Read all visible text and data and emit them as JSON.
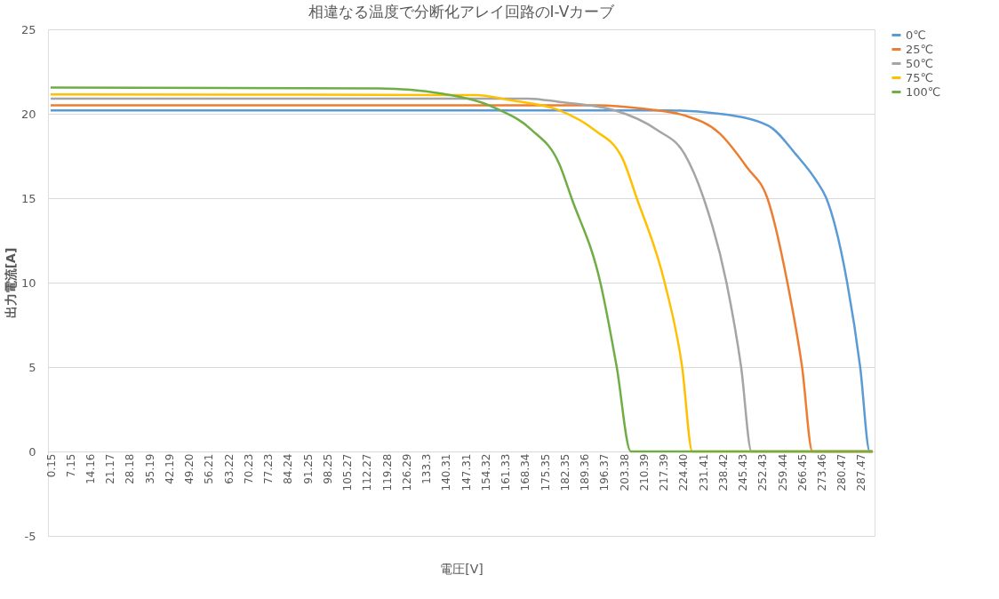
{
  "chart_data": {
    "type": "line",
    "title": "相違なる温度で分断化アレイ回路のI-Vカーブ",
    "xlabel": "電圧[V]",
    "ylabel": "出力電流[A]",
    "xlim": [
      -0.8,
      292.2
    ],
    "ylim": [
      -5,
      25
    ],
    "yticks": [
      -5,
      0,
      5,
      10,
      15,
      20,
      25
    ],
    "xticks": [
      0.15,
      7.15,
      14.16,
      21.17,
      28.18,
      35.19,
      42.19,
      {
        "value": 49.2,
        "label": "49.20"
      },
      56.21,
      63.22,
      70.23,
      77.23,
      84.24,
      91.25,
      98.25,
      105.27,
      112.27,
      119.28,
      126.29,
      133.3,
      140.31,
      147.31,
      154.32,
      161.33,
      168.34,
      175.35,
      182.35,
      189.36,
      196.37,
      203.38,
      210.39,
      217.39,
      {
        "value": 224.4,
        "label": "224.40"
      },
      231.41,
      238.42,
      245.43,
      252.43,
      259.44,
      266.45,
      273.46,
      280.47,
      287.47
    ],
    "grid": "y",
    "legend": "right",
    "marker": "none",
    "line_style": "solid",
    "series": [
      {
        "name": "0℃",
        "color": "#5b9bd5",
        "x": [
          0.15,
          218.7,
          237.2,
          254.5,
          264.3,
          271.7,
          275.1,
          282.5,
          287.1,
          290.5,
          291.5
        ],
        "values": [
          20.2,
          20.2,
          20.0,
          19.3,
          17.6,
          16.0,
          15,
          10,
          5,
          0,
          0
        ]
      },
      {
        "name": "25℃",
        "color": "#ed7d31",
        "x": [
          0.15,
          194.0,
          210.1,
          224.9,
          237.2,
          247.1,
          254.2,
          261.3,
          266.5,
          270.2,
          291.5
        ],
        "values": [
          20.5,
          20.5,
          20.3,
          19.9,
          18.85,
          16.8,
          15,
          10,
          5,
          0,
          0
        ]
      },
      {
        "name": "50℃",
        "color": "#a5a5a5",
        "x": [
          0.15,
          169.4,
          180.5,
          200.2,
          215.0,
          224.9,
          231.6,
          239.7,
          244.9,
          248.6,
          291.5
        ],
        "values": [
          20.9,
          20.9,
          20.7,
          20.2,
          19.05,
          17.6,
          15,
          10,
          5,
          0,
          0
        ]
      },
      {
        "name": "75℃",
        "color": "#ffc000",
        "x": [
          0.15,
          150.9,
          163.2,
          180.5,
          192.8,
          202.7,
          207.9,
          217.8,
          224.0,
          227.6,
          291.5
        ],
        "values": [
          21.15,
          21.1,
          20.8,
          20.2,
          19.05,
          17.4,
          15,
          10,
          5,
          0,
          0
        ]
      },
      {
        "name": "100℃",
        "color": "#70ad47",
        "x": [
          0.15,
          116.4,
          138.6,
          158.3,
          170.6,
          180.5,
          184.8,
          195.0,
          200.8,
          205.8,
          291.5
        ],
        "values": [
          21.55,
          21.5,
          21.2,
          20.3,
          19.05,
          17.0,
          15,
          10,
          5,
          0,
          0
        ]
      }
    ]
  }
}
